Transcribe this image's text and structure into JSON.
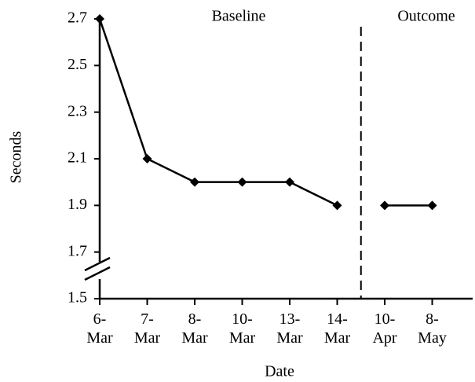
{
  "chart_data": {
    "type": "line",
    "xlabel": "Date",
    "ylabel": "Seconds",
    "categories": [
      "6-\nMar",
      "7-\nMar",
      "8-\nMar",
      "10-\nMar",
      "13-\nMar",
      "14-\nMar",
      "10-\nApr",
      "8-\nMay"
    ],
    "series": [
      {
        "name": "Baseline",
        "color": "#000000",
        "values": [
          2.7,
          2.1,
          2.0,
          2.0,
          2.0,
          1.9,
          null,
          null
        ]
      },
      {
        "name": "Outcome",
        "color": "#000000",
        "values": [
          null,
          null,
          null,
          null,
          null,
          null,
          1.9,
          1.9
        ]
      }
    ],
    "ylim": [
      1.5,
      2.7
    ],
    "yticks": [
      1.5,
      1.7,
      1.9,
      2.1,
      2.3,
      2.5,
      2.7
    ],
    "grid": false
  }
}
